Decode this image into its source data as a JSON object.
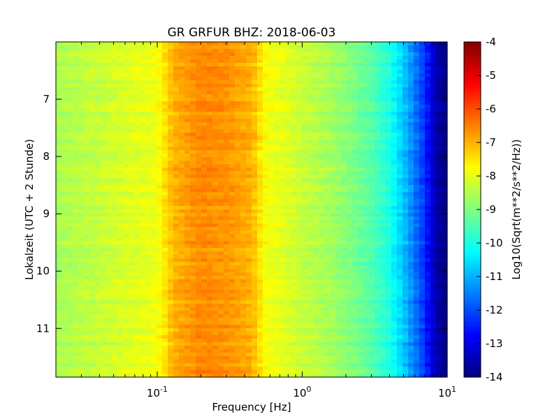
{
  "chart_data": {
    "type": "heatmap",
    "title": "GR GRFUR BHZ: 2018-06-03",
    "xlabel": "Frequency [Hz]",
    "ylabel": "Lokalzeit (UTC + 2 Stunde)",
    "x_scale": "log",
    "xlim": [
      0.02,
      10
    ],
    "ylim": [
      11.85,
      6.0
    ],
    "x_ticks": [
      {
        "value": 0.1,
        "base": "10",
        "exp": "-1"
      },
      {
        "value": 1,
        "base": "10",
        "exp": "0"
      },
      {
        "value": 10,
        "base": "10",
        "exp": "1"
      }
    ],
    "y_ticks": [
      {
        "value": 7,
        "label": "7"
      },
      {
        "value": 8,
        "label": "8"
      },
      {
        "value": 9,
        "label": "9"
      },
      {
        "value": 10,
        "label": "10"
      },
      {
        "value": 11,
        "label": "11"
      }
    ],
    "colormap": "jet",
    "colorbar": {
      "label": "Log10(Sqrt(m**2/s**2/Hz))",
      "range": [
        -14,
        -4
      ],
      "ticks": [
        "-4",
        "-5",
        "-6",
        "-7",
        "-8",
        "-9",
        "-10",
        "-11",
        "-12",
        "-13",
        "-14"
      ]
    },
    "spectrum_profile": {
      "frequencies": [
        0.02,
        0.04,
        0.06,
        0.08,
        0.1,
        0.13,
        0.2,
        0.3,
        0.45,
        0.55,
        0.8,
        1.0,
        1.5,
        2.0,
        3.0,
        4.0,
        5.0,
        6.0,
        7.0,
        8.0,
        9.0,
        10.0
      ],
      "values": [
        -8.6,
        -8.3,
        -8.1,
        -8.0,
        -7.9,
        -7.0,
        -6.6,
        -6.7,
        -7.0,
        -7.8,
        -8.1,
        -8.3,
        -8.6,
        -8.9,
        -9.4,
        -10.0,
        -10.8,
        -11.6,
        -12.3,
        -13.2,
        -13.8,
        -14.0
      ]
    },
    "grid": false,
    "legend": "colorbar-right"
  }
}
